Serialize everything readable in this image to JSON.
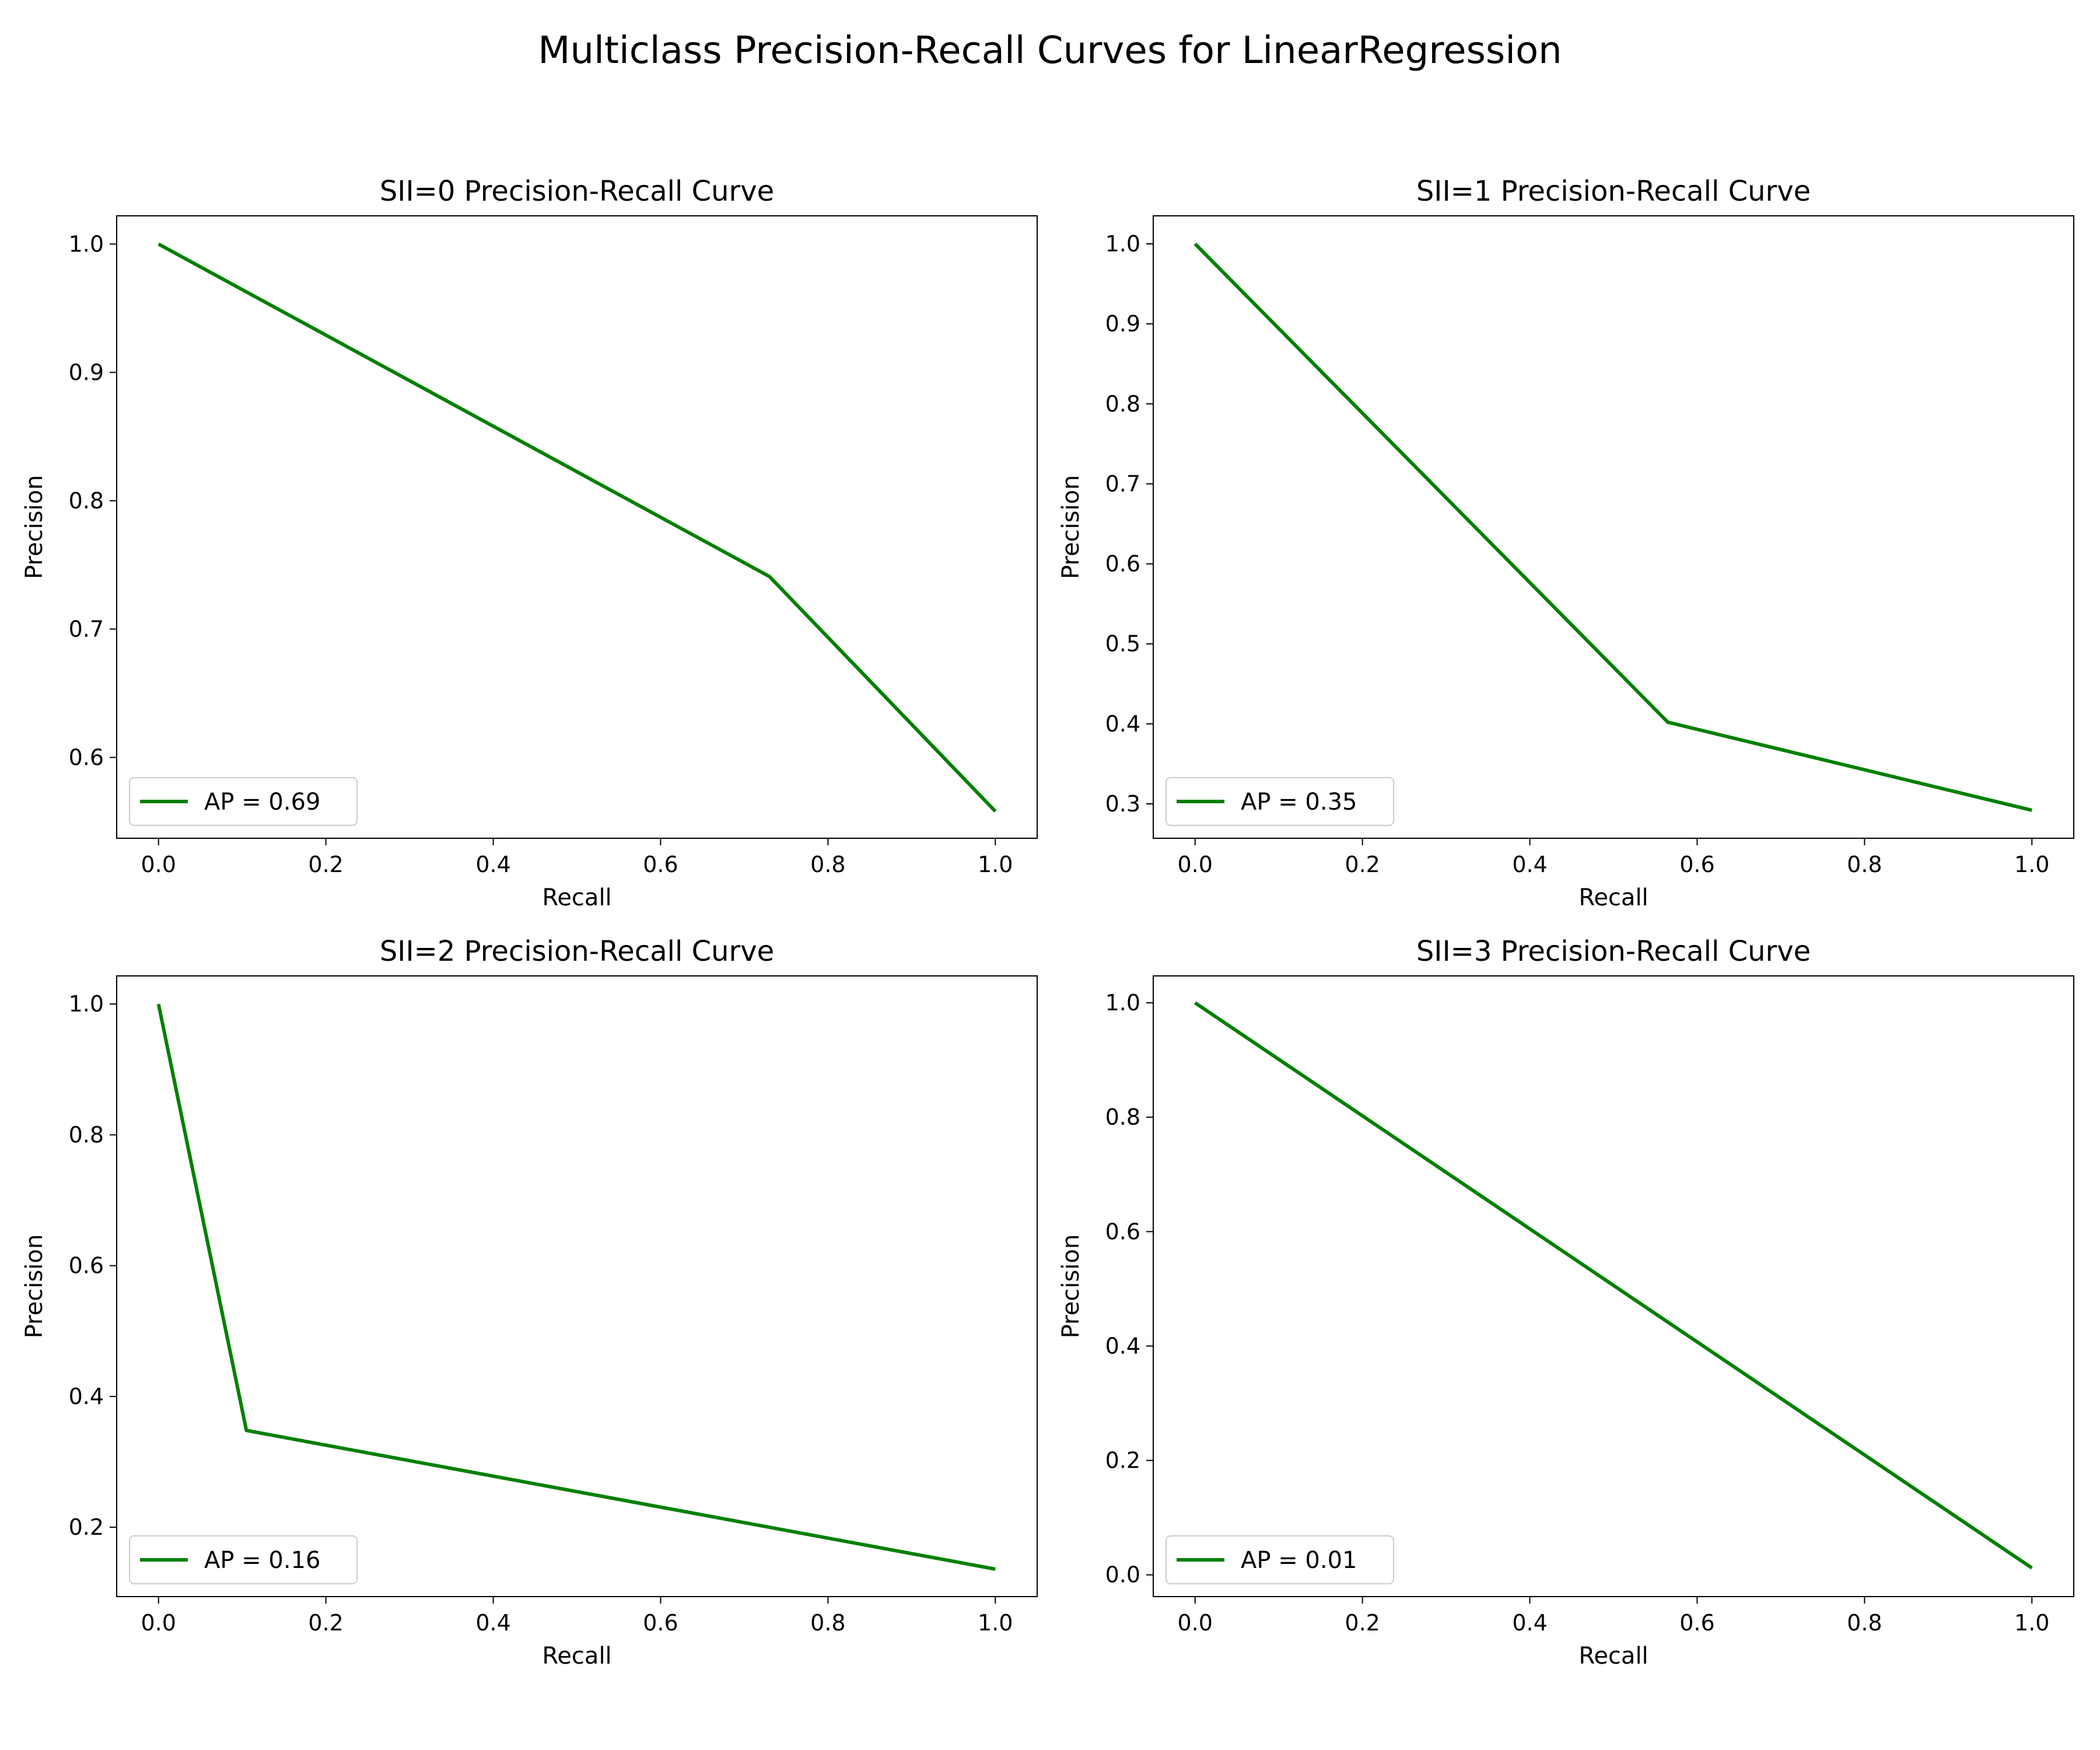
{
  "figure_title": "Multiclass Precision-Recall Curves for LinearRegression",
  "colors": {
    "curve": "#008000",
    "axes": "#000000",
    "legend_border": "#cccccc",
    "background": "#ffffff"
  },
  "chart_data": [
    {
      "type": "line",
      "title": "SII=0 Precision-Recall Curve",
      "xlabel": "Recall",
      "ylabel": "Precision",
      "xlim": [
        -0.05,
        1.05
      ],
      "ylim": [
        0.537,
        1.022
      ],
      "xticks": [
        0.0,
        0.2,
        0.4,
        0.6,
        0.8,
        1.0
      ],
      "xtick_labels": [
        "0.0",
        "0.2",
        "0.4",
        "0.6",
        "0.8",
        "1.0"
      ],
      "yticks": [
        0.6,
        0.7,
        0.8,
        0.9,
        1.0
      ],
      "ytick_labels": [
        "0.6",
        "0.7",
        "0.8",
        "0.9",
        "1.0"
      ],
      "legend_position": "lower-left",
      "grid": false,
      "series": [
        {
          "name": "AP = 0.69",
          "x": [
            0.0,
            0.73,
            1.0
          ],
          "y": [
            1.0,
            0.741,
            0.558
          ]
        }
      ]
    },
    {
      "type": "line",
      "title": "SII=1 Precision-Recall Curve",
      "xlabel": "Recall",
      "ylabel": "Precision",
      "xlim": [
        -0.05,
        1.05
      ],
      "ylim": [
        0.257,
        1.035
      ],
      "xticks": [
        0.0,
        0.2,
        0.4,
        0.6,
        0.8,
        1.0
      ],
      "xtick_labels": [
        "0.0",
        "0.2",
        "0.4",
        "0.6",
        "0.8",
        "1.0"
      ],
      "yticks": [
        0.3,
        0.4,
        0.5,
        0.6,
        0.7,
        0.8,
        0.9,
        1.0
      ],
      "ytick_labels": [
        "0.3",
        "0.4",
        "0.5",
        "0.6",
        "0.7",
        "0.8",
        "0.9",
        "1.0"
      ],
      "legend_position": "lower-left",
      "grid": false,
      "series": [
        {
          "name": "AP = 0.35",
          "x": [
            0.0,
            0.565,
            1.0
          ],
          "y": [
            1.0,
            0.402,
            0.292
          ]
        }
      ]
    },
    {
      "type": "line",
      "title": "SII=2 Precision-Recall Curve",
      "xlabel": "Recall",
      "ylabel": "Precision",
      "xlim": [
        -0.05,
        1.05
      ],
      "ylim": [
        0.094,
        1.043
      ],
      "xticks": [
        0.0,
        0.2,
        0.4,
        0.6,
        0.8,
        1.0
      ],
      "xtick_labels": [
        "0.0",
        "0.2",
        "0.4",
        "0.6",
        "0.8",
        "1.0"
      ],
      "yticks": [
        0.2,
        0.4,
        0.6,
        0.8,
        1.0
      ],
      "ytick_labels": [
        "0.2",
        "0.4",
        "0.6",
        "0.8",
        "1.0"
      ],
      "legend_position": "lower-left",
      "grid": false,
      "series": [
        {
          "name": "AP = 0.16",
          "x": [
            0.0,
            0.105,
            1.0
          ],
          "y": [
            1.0,
            0.348,
            0.136
          ]
        }
      ]
    },
    {
      "type": "line",
      "title": "SII=3 Precision-Recall Curve",
      "xlabel": "Recall",
      "ylabel": "Precision",
      "xlim": [
        -0.05,
        1.05
      ],
      "ylim": [
        -0.038,
        1.047
      ],
      "xticks": [
        0.0,
        0.2,
        0.4,
        0.6,
        0.8,
        1.0
      ],
      "xtick_labels": [
        "0.0",
        "0.2",
        "0.4",
        "0.6",
        "0.8",
        "1.0"
      ],
      "yticks": [
        0.0,
        0.2,
        0.4,
        0.6,
        0.8,
        1.0
      ],
      "ytick_labels": [
        "0.0",
        "0.2",
        "0.4",
        "0.6",
        "0.8",
        "1.0"
      ],
      "legend_position": "lower-left",
      "grid": false,
      "series": [
        {
          "name": "AP = 0.01",
          "x": [
            0.0,
            1.0
          ],
          "y": [
            1.0,
            0.012
          ]
        }
      ]
    }
  ]
}
